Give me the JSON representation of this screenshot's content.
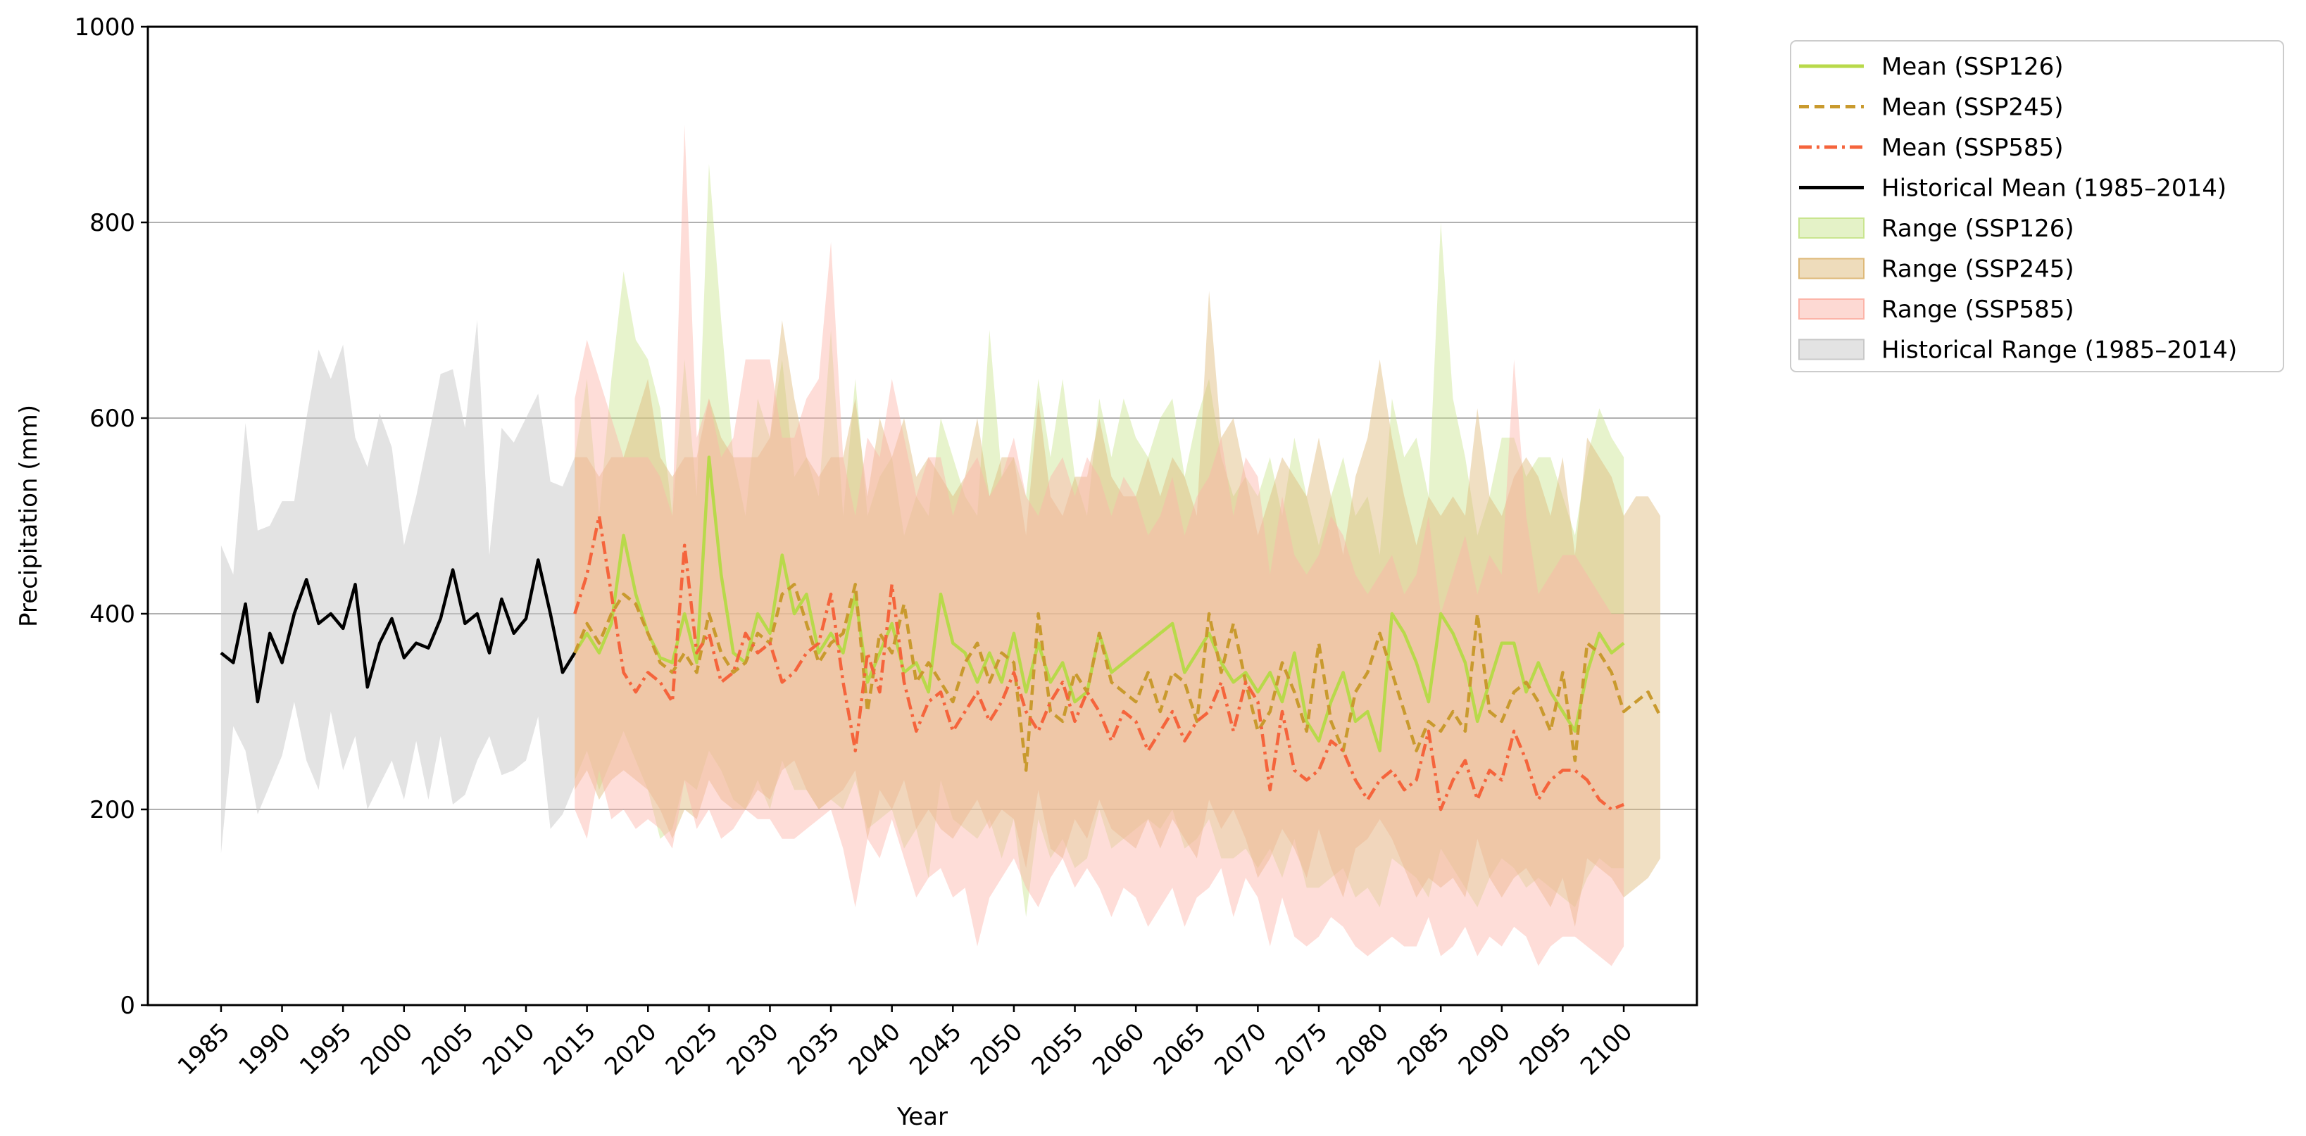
{
  "chart_data": {
    "type": "line",
    "title": "",
    "xlabel": "Year",
    "ylabel": "Precipitation (mm)",
    "xlim": [
      1979,
      2106
    ],
    "ylim": [
      0,
      1000
    ],
    "x_ticks": [
      1985,
      1990,
      1995,
      2000,
      2005,
      2010,
      2015,
      2020,
      2025,
      2030,
      2035,
      2040,
      2045,
      2050,
      2055,
      2060,
      2065,
      2070,
      2075,
      2080,
      2085,
      2090,
      2095,
      2100
    ],
    "y_ticks": [
      0,
      200,
      400,
      600,
      800,
      1000
    ],
    "grid": "y",
    "legend_position": "outside-right-top",
    "historical": {
      "mean_label": "Historical Mean (1985–2014)",
      "range_label": "Historical Range (1985–2014)",
      "mean_color": "#000000",
      "range_color": "#c8c8c8",
      "x_start": 1985,
      "mean": [
        360,
        350,
        410,
        310,
        380,
        350,
        400,
        435,
        390,
        400,
        385,
        430,
        325,
        370,
        395,
        355,
        370,
        365,
        395,
        445,
        390,
        400,
        360,
        415,
        380,
        395,
        455,
        400,
        340,
        360
      ],
      "upper": [
        470,
        440,
        595,
        485,
        490,
        515,
        515,
        600,
        670,
        640,
        675,
        580,
        550,
        605,
        570,
        470,
        520,
        580,
        645,
        650,
        590,
        700,
        460,
        590,
        575,
        600,
        625,
        535,
        530,
        560
      ],
      "lower": [
        155,
        285,
        260,
        195,
        225,
        255,
        310,
        250,
        220,
        300,
        240,
        275,
        200,
        225,
        250,
        210,
        270,
        210,
        275,
        205,
        215,
        250,
        275,
        235,
        240,
        250,
        295,
        180,
        195,
        225
      ]
    },
    "series": [
      {
        "name": "Mean (SSP126)",
        "range_label": "Range (SSP126)",
        "color": "#b8d94a",
        "fill": "#c9e58f",
        "dash": "solid",
        "x_start": 2014,
        "mean": [
          360,
          380,
          360,
          390,
          480,
          420,
          380,
          355,
          350,
          400,
          350,
          560,
          440,
          360,
          350,
          400,
          380,
          460,
          400,
          420,
          360,
          380,
          360,
          420,
          330,
          360,
          390,
          340,
          350,
          320,
          420,
          370,
          360,
          330,
          360,
          330,
          380,
          320,
          370,
          330,
          350,
          310,
          320,
          380,
          340,
          350,
          360,
          370,
          380,
          390,
          340,
          360,
          380,
          350,
          330,
          340,
          320,
          340,
          310,
          360,
          290,
          270,
          310,
          340,
          290,
          300,
          260,
          400,
          380,
          350,
          310,
          400,
          380,
          350,
          290,
          330,
          370,
          370,
          320,
          350,
          320,
          300,
          280,
          340,
          380,
          360,
          370
        ],
        "upper": [
          560,
          640,
          500,
          640,
          750,
          680,
          660,
          610,
          500,
          660,
          520,
          860,
          700,
          560,
          500,
          620,
          580,
          660,
          540,
          560,
          520,
          690,
          500,
          640,
          500,
          540,
          560,
          480,
          520,
          500,
          600,
          560,
          520,
          500,
          690,
          540,
          560,
          520,
          640,
          560,
          640,
          540,
          500,
          620,
          560,
          620,
          580,
          560,
          600,
          620,
          540,
          600,
          640,
          560,
          520,
          540,
          520,
          560,
          500,
          580,
          520,
          470,
          520,
          560,
          500,
          520,
          460,
          620,
          560,
          580,
          520,
          800,
          620,
          560,
          480,
          520,
          580,
          580,
          540,
          560,
          560,
          520,
          480,
          560,
          610,
          580,
          560
        ],
        "lower": [
          230,
          260,
          220,
          250,
          280,
          250,
          220,
          170,
          180,
          230,
          220,
          260,
          240,
          210,
          200,
          230,
          200,
          250,
          220,
          220,
          200,
          210,
          200,
          230,
          180,
          190,
          200,
          160,
          180,
          130,
          230,
          190,
          180,
          170,
          190,
          150,
          190,
          90,
          190,
          150,
          170,
          140,
          150,
          200,
          160,
          170,
          180,
          190,
          180,
          200,
          160,
          170,
          190,
          150,
          150,
          160,
          140,
          160,
          130,
          170,
          120,
          120,
          130,
          140,
          110,
          120,
          100,
          150,
          140,
          130,
          110,
          160,
          140,
          120,
          100,
          130,
          150,
          140,
          120,
          130,
          120,
          110,
          100,
          130,
          150,
          140,
          140
        ]
      },
      {
        "name": "Mean (SSP245)",
        "range_label": "Range (SSP245)",
        "color": "#c99a2e",
        "fill": "#deb978",
        "dash": "dashed",
        "x_start": 2014,
        "mean": [
          360,
          390,
          370,
          400,
          420,
          410,
          380,
          350,
          340,
          360,
          340,
          400,
          360,
          340,
          350,
          380,
          370,
          420,
          430,
          390,
          350,
          370,
          380,
          430,
          300,
          380,
          360,
          410,
          330,
          350,
          330,
          310,
          350,
          370,
          330,
          360,
          350,
          240,
          400,
          300,
          290,
          340,
          320,
          380,
          330,
          320,
          310,
          340,
          300,
          340,
          330,
          290,
          400,
          340,
          390,
          330,
          280,
          300,
          350,
          320,
          280,
          370,
          290,
          260,
          320,
          340,
          380,
          340,
          300,
          260,
          290,
          280,
          300,
          280,
          400,
          300,
          290,
          320,
          330,
          310,
          280,
          340,
          250,
          370,
          360,
          340,
          300,
          310,
          320,
          295
        ],
        "upper": [
          560,
          560,
          540,
          560,
          560,
          600,
          640,
          560,
          540,
          560,
          560,
          620,
          580,
          560,
          560,
          560,
          580,
          700,
          620,
          560,
          540,
          560,
          560,
          620,
          520,
          600,
          560,
          600,
          540,
          560,
          540,
          520,
          540,
          600,
          520,
          560,
          560,
          480,
          620,
          520,
          500,
          540,
          540,
          600,
          540,
          520,
          520,
          560,
          520,
          560,
          540,
          500,
          730,
          580,
          600,
          540,
          480,
          520,
          560,
          540,
          520,
          580,
          520,
          460,
          540,
          580,
          660,
          580,
          520,
          470,
          520,
          500,
          520,
          500,
          610,
          520,
          500,
          540,
          560,
          540,
          500,
          560,
          460,
          580,
          560,
          540,
          500,
          520,
          520,
          500
        ],
        "lower": [
          220,
          240,
          210,
          230,
          240,
          230,
          220,
          200,
          170,
          200,
          190,
          230,
          210,
          200,
          200,
          220,
          210,
          240,
          250,
          220,
          200,
          210,
          220,
          240,
          170,
          220,
          200,
          230,
          180,
          200,
          180,
          170,
          190,
          210,
          180,
          200,
          190,
          140,
          220,
          160,
          150,
          190,
          170,
          210,
          180,
          170,
          160,
          190,
          160,
          190,
          170,
          150,
          210,
          180,
          200,
          170,
          130,
          150,
          180,
          160,
          130,
          180,
          140,
          110,
          160,
          170,
          190,
          170,
          140,
          110,
          130,
          120,
          130,
          110,
          170,
          130,
          110,
          130,
          140,
          120,
          100,
          130,
          80,
          150,
          140,
          130,
          110,
          120,
          130,
          150
        ]
      },
      {
        "name": "Mean (SSP585)",
        "range_label": "Range (SSP585)",
        "color": "#f5643c",
        "fill": "#fcb4a8",
        "dash": "dashdot",
        "x_start": 2014,
        "mean": [
          400,
          440,
          500,
          420,
          340,
          320,
          340,
          330,
          310,
          470,
          360,
          380,
          330,
          340,
          380,
          360,
          370,
          330,
          340,
          360,
          370,
          420,
          330,
          260,
          360,
          320,
          430,
          330,
          280,
          310,
          320,
          280,
          300,
          320,
          290,
          310,
          340,
          300,
          280,
          310,
          330,
          290,
          320,
          300,
          270,
          300,
          290,
          260,
          280,
          300,
          270,
          290,
          300,
          330,
          280,
          330,
          310,
          220,
          300,
          240,
          230,
          240,
          270,
          260,
          230,
          210,
          230,
          240,
          220,
          230,
          280,
          200,
          230,
          250,
          210,
          240,
          230,
          280,
          250,
          210,
          230,
          240,
          240,
          230,
          210,
          200,
          205
        ],
        "upper": [
          620,
          680,
          640,
          600,
          560,
          560,
          560,
          540,
          500,
          900,
          580,
          620,
          560,
          580,
          660,
          660,
          660,
          580,
          580,
          620,
          640,
          780,
          560,
          500,
          580,
          560,
          640,
          580,
          520,
          560,
          560,
          500,
          540,
          560,
          520,
          540,
          580,
          520,
          500,
          540,
          560,
          520,
          560,
          540,
          500,
          540,
          520,
          480,
          500,
          540,
          480,
          520,
          540,
          580,
          500,
          560,
          540,
          440,
          520,
          460,
          440,
          460,
          500,
          480,
          440,
          420,
          440,
          460,
          420,
          440,
          500,
          400,
          440,
          480,
          420,
          460,
          440,
          660,
          500,
          420,
          440,
          460,
          460,
          440,
          420,
          400,
          400
        ],
        "lower": [
          200,
          170,
          240,
          190,
          200,
          180,
          190,
          180,
          160,
          230,
          180,
          200,
          170,
          180,
          200,
          190,
          190,
          170,
          170,
          180,
          190,
          200,
          160,
          100,
          170,
          150,
          190,
          150,
          110,
          130,
          140,
          110,
          120,
          60,
          110,
          130,
          150,
          120,
          100,
          130,
          150,
          120,
          140,
          120,
          90,
          120,
          110,
          80,
          100,
          120,
          80,
          110,
          120,
          140,
          90,
          130,
          110,
          60,
          110,
          70,
          60,
          70,
          90,
          80,
          60,
          50,
          60,
          70,
          60,
          60,
          90,
          50,
          60,
          80,
          50,
          70,
          60,
          80,
          70,
          40,
          60,
          70,
          70,
          60,
          50,
          40,
          60
        ]
      }
    ]
  }
}
